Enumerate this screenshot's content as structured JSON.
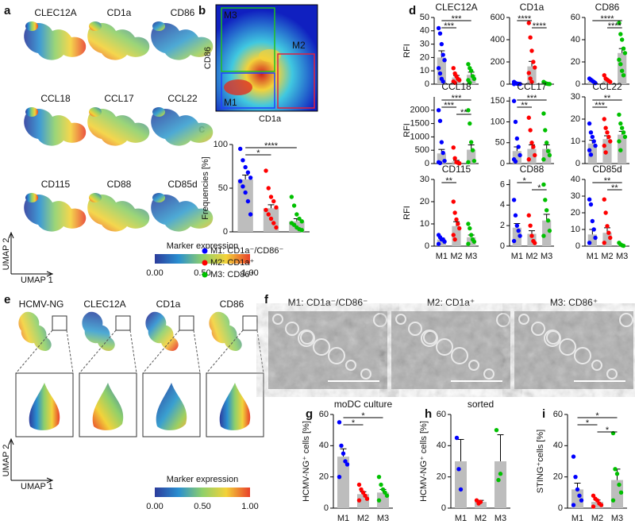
{
  "panel_labels": [
    "a",
    "b",
    "c",
    "d",
    "e",
    "f",
    "g",
    "h",
    "i"
  ],
  "umap_a": {
    "markers": [
      "CLEC12A",
      "CD1a",
      "CD86",
      "CCL18",
      "CCL17",
      "CCL22",
      "CD115",
      "CD88",
      "CD85d"
    ],
    "x_axis": "UMAP 1",
    "y_axis": "UMAP 2",
    "scale_title": "Marker expression",
    "scale_ticks": [
      "0.00",
      "0.50",
      "1.00"
    ]
  },
  "umap_e": {
    "markers": [
      "HCMV-NG",
      "CLEC12A",
      "CD1a",
      "CD86"
    ],
    "x_axis": "UMAP 1",
    "y_axis": "UMAP 2",
    "scale_title": "Marker expression",
    "scale_ticks": [
      "0.00",
      "0.50",
      "1.00"
    ]
  },
  "gating_b": {
    "y_axis": "CD86",
    "x_axis": "CD1a",
    "gates": [
      "M3",
      "M2",
      "M1"
    ]
  },
  "micrographs_f": {
    "titles": [
      "M1: CD1a⁻/CD86⁻",
      "M2: CD1a⁺",
      "M3: CD86⁺"
    ]
  },
  "chart_data": [
    {
      "type": "bar",
      "ylabel": "Frequencies [%]",
      "ylim": [
        0,
        100
      ],
      "yticks": [
        0,
        50,
        100
      ],
      "values": [
        60,
        27,
        12
      ],
      "errors": [
        5,
        4,
        3
      ],
      "colors": [
        "#0000ff",
        "#ff0000",
        "#00c000"
      ],
      "bar_color": "#bdbdbd",
      "points": [
        [
          95,
          82,
          74,
          68,
          62,
          58,
          52,
          45,
          35,
          20
        ],
        [
          70,
          50,
          40,
          35,
          28,
          25,
          20,
          15,
          10,
          5
        ],
        [
          40,
          30,
          20,
          15,
          12,
          10,
          8,
          5,
          3,
          2
        ]
      ],
      "significance": [
        {
          "label": "****",
          "pair": [
            0,
            2
          ]
        },
        {
          "label": "*",
          "pair": [
            0,
            1
          ]
        }
      ],
      "legend": [
        "M1: CD1a⁻/CD86⁻",
        "M2: CD1a⁺",
        "M3: CD86⁺"
      ]
    },
    {
      "type": "bar",
      "title": "CLEC12A",
      "ylabel": "RFI",
      "ylim": [
        0,
        50
      ],
      "yticks": [
        0,
        10,
        20,
        30,
        40,
        50
      ],
      "values": [
        20,
        5,
        7
      ],
      "errors": [
        5,
        1.5,
        2
      ],
      "colors": [
        "#0000ff",
        "#ff0000",
        "#00c000"
      ],
      "bar_color": "#bdbdbd",
      "points": [
        [
          42,
          38,
          30,
          22,
          18,
          12,
          8,
          4,
          2
        ],
        [
          12,
          8,
          6,
          4,
          3,
          2,
          1
        ],
        [
          15,
          12,
          10,
          6,
          4,
          3,
          1
        ]
      ],
      "significance": [
        {
          "label": "***",
          "pair": [
            0,
            2
          ]
        },
        {
          "label": "***",
          "pair": [
            0,
            1
          ]
        }
      ]
    },
    {
      "type": "bar",
      "title": "CD1a",
      "ylim": [
        0,
        600
      ],
      "yticks": [
        0,
        200,
        400,
        600
      ],
      "values": [
        5,
        160,
        5
      ],
      "errors": [
        2,
        45,
        2
      ],
      "colors": [
        "#0000ff",
        "#ff0000",
        "#00c000"
      ],
      "bar_color": "#bdbdbd",
      "points": [
        [
          20,
          10,
          5,
          3,
          2,
          1
        ],
        [
          550,
          420,
          300,
          200,
          150,
          100,
          50,
          20
        ],
        [
          20,
          10,
          5,
          2,
          1
        ]
      ],
      "significance": [
        {
          "label": "****",
          "pair": [
            0,
            1
          ]
        },
        {
          "label": "****",
          "pair": [
            1,
            2
          ]
        }
      ]
    },
    {
      "type": "bar",
      "title": "CD86",
      "ylim": [
        0,
        60
      ],
      "yticks": [
        0,
        20,
        40,
        60
      ],
      "values": [
        2,
        3,
        28
      ],
      "errors": [
        0.5,
        0.8,
        4
      ],
      "colors": [
        "#0000ff",
        "#ff0000",
        "#00c000"
      ],
      "bar_color": "#bdbdbd",
      "points": [
        [
          5,
          4,
          3,
          2,
          1
        ],
        [
          8,
          5,
          4,
          3,
          2
        ],
        [
          55,
          45,
          40,
          32,
          28,
          22,
          18,
          12,
          8
        ]
      ],
      "significance": [
        {
          "label": "****",
          "pair": [
            0,
            2
          ]
        },
        {
          "label": "****",
          "pair": [
            1,
            2
          ]
        }
      ]
    },
    {
      "type": "bar",
      "title": "CCL18",
      "ylabel": "RFI",
      "ylim": [
        0,
        2500
      ],
      "yticks": [
        0,
        500,
        1000,
        1500,
        2000
      ],
      "values": [
        380,
        80,
        520
      ],
      "errors": [
        150,
        40,
        180
      ],
      "colors": [
        "#0000ff",
        "#ff0000",
        "#00c000"
      ],
      "bar_color": "#bdbdbd",
      "points": [
        [
          2000,
          1600,
          800,
          400,
          100,
          50,
          20
        ],
        [
          600,
          200,
          50,
          30,
          10
        ],
        [
          2000,
          1500,
          800,
          500,
          100,
          50
        ]
      ],
      "significance": [
        {
          "label": "***",
          "pair": [
            0,
            2
          ]
        },
        {
          "label": "***",
          "pair": [
            0,
            1
          ]
        },
        {
          "label": "**",
          "pair": [
            1,
            2
          ]
        }
      ]
    },
    {
      "type": "bar",
      "title": "CCL17",
      "ylim": [
        0,
        160
      ],
      "yticks": [
        0,
        50,
        100,
        150
      ],
      "values": [
        30,
        35,
        35
      ],
      "errors": [
        10,
        10,
        10
      ],
      "colors": [
        "#0000ff",
        "#ff0000",
        "#00c000"
      ],
      "bar_color": "#bdbdbd",
      "points": [
        [
          150,
          100,
          60,
          40,
          20,
          10,
          5
        ],
        [
          110,
          80,
          50,
          40,
          20,
          10
        ],
        [
          120,
          80,
          50,
          30,
          20,
          10
        ]
      ],
      "significance": [
        {
          "label": "***",
          "pair": [
            0,
            2
          ]
        },
        {
          "label": "**",
          "pair": [
            0,
            1
          ]
        }
      ]
    },
    {
      "type": "bar",
      "title": "CCL22",
      "ylim": [
        0,
        30
      ],
      "yticks": [
        0,
        10,
        20,
        30
      ],
      "values": [
        9,
        11,
        13
      ],
      "errors": [
        1.5,
        1.5,
        1.5
      ],
      "colors": [
        "#0000ff",
        "#ff0000",
        "#00c000"
      ],
      "bar_color": "#bdbdbd",
      "points": [
        [
          18,
          14,
          12,
          10,
          8,
          6,
          4
        ],
        [
          20,
          16,
          14,
          12,
          10,
          8,
          5
        ],
        [
          22,
          18,
          16,
          14,
          12,
          10,
          6
        ]
      ],
      "significance": [
        {
          "label": "**",
          "pair": [
            0,
            2
          ]
        },
        {
          "label": "***",
          "pair": [
            0,
            1
          ]
        }
      ]
    },
    {
      "type": "bar",
      "title": "CD115",
      "ylabel": "RFI",
      "ylim": [
        0,
        30
      ],
      "yticks": [
        0,
        10,
        20,
        30
      ],
      "categories": [
        "M1",
        "M2",
        "M3"
      ],
      "values": [
        3,
        9,
        4
      ],
      "errors": [
        0.6,
        2,
        1
      ],
      "colors": [
        "#0000ff",
        "#ff0000",
        "#00c000"
      ],
      "bar_color": "#bdbdbd",
      "points": [
        [
          5,
          4,
          3,
          3,
          2,
          1
        ],
        [
          20,
          15,
          12,
          10,
          8,
          5,
          3
        ],
        [
          10,
          8,
          5,
          3,
          2,
          1
        ]
      ],
      "significance": [
        {
          "label": "**",
          "pair": [
            0,
            1
          ]
        }
      ]
    },
    {
      "type": "bar",
      "title": "CD88",
      "ylim": [
        0,
        6.5
      ],
      "yticks": [
        0,
        2,
        4,
        6
      ],
      "categories": [
        "M1",
        "M2",
        "M3"
      ],
      "values": [
        1.8,
        1.2,
        2.5
      ],
      "errors": [
        0.4,
        0.3,
        0.6
      ],
      "colors": [
        "#0000ff",
        "#ff0000",
        "#00c000"
      ],
      "bar_color": "#bdbdbd",
      "points": [
        [
          4.5,
          3,
          2,
          1.5,
          1,
          0.5
        ],
        [
          3,
          2,
          1,
          0.5,
          0.3
        ],
        [
          6,
          4.5,
          3.5,
          2.5,
          1.5,
          1
        ]
      ],
      "significance": [
        {
          "label": "*",
          "pair": [
            0,
            1
          ]
        },
        {
          "label": "*",
          "pair": [
            1,
            2
          ]
        }
      ]
    },
    {
      "type": "bar",
      "title": "CD85d",
      "ylim": [
        0,
        40
      ],
      "yticks": [
        0,
        10,
        20,
        30,
        40
      ],
      "categories": [
        "M1",
        "M2",
        "M3"
      ],
      "values": [
        7,
        8,
        0.5
      ],
      "errors": [
        3,
        3,
        0.3
      ],
      "colors": [
        "#0000ff",
        "#ff0000",
        "#00c000"
      ],
      "bar_color": "#bdbdbd",
      "points": [
        [
          28,
          25,
          15,
          10,
          5,
          2
        ],
        [
          28,
          20,
          12,
          8,
          5,
          2
        ],
        [
          2,
          1,
          0.5,
          0.2
        ]
      ],
      "significance": [
        {
          "label": "**",
          "pair": [
            0,
            2
          ]
        },
        {
          "label": "**",
          "pair": [
            1,
            2
          ]
        }
      ]
    },
    {
      "type": "bar",
      "title": "moDC culture",
      "ylabel": "HCMV-NG⁺ cells [%]",
      "ylim": [
        0,
        60
      ],
      "yticks": [
        0,
        20,
        40,
        60
      ],
      "categories": [
        "M1",
        "M2",
        "M3"
      ],
      "values": [
        33,
        9,
        10
      ],
      "errors": [
        5,
        1.5,
        2
      ],
      "colors": [
        "#0000ff",
        "#ff0000",
        "#00c000"
      ],
      "bar_color": "#bdbdbd",
      "points": [
        [
          55,
          40,
          35,
          30,
          28,
          20
        ],
        [
          15,
          12,
          10,
          8,
          6,
          5
        ],
        [
          20,
          15,
          12,
          10,
          8,
          5
        ]
      ],
      "significance": [
        {
          "label": "*",
          "pair": [
            0,
            2
          ]
        },
        {
          "label": "*",
          "pair": [
            0,
            1
          ]
        }
      ]
    },
    {
      "type": "bar",
      "title": "sorted",
      "ylabel": "HCMV-NG⁺ cells [%]",
      "ylim": [
        0,
        60
      ],
      "yticks": [
        0,
        20,
        40,
        60
      ],
      "categories": [
        "M1",
        "M2",
        "M3"
      ],
      "values": [
        30,
        4,
        30
      ],
      "errors": [
        14,
        1,
        17
      ],
      "colors": [
        "#0000ff",
        "#ff0000",
        "#00c000"
      ],
      "bar_color": "#bdbdbd",
      "points": [
        [
          45,
          25,
          12
        ],
        [
          5,
          3,
          4
        ],
        [
          50,
          18,
          22
        ]
      ]
    },
    {
      "type": "bar",
      "ylabel": "STING⁺cells [%]",
      "ylim": [
        0,
        60
      ],
      "yticks": [
        0,
        20,
        40,
        60
      ],
      "categories": [
        "M1",
        "M2",
        "M3"
      ],
      "values": [
        12,
        4,
        18
      ],
      "errors": [
        4,
        1.2,
        7
      ],
      "colors": [
        "#0000ff",
        "#ff0000",
        "#00c000"
      ],
      "bar_color": "#bdbdbd",
      "points": [
        [
          33,
          20,
          12,
          8,
          5,
          2
        ],
        [
          8,
          6,
          5,
          3,
          2,
          1
        ],
        [
          48,
          25,
          22,
          15,
          10,
          5
        ]
      ],
      "significance": [
        {
          "label": "*",
          "pair": [
            0,
            2
          ]
        },
        {
          "label": "*",
          "pair": [
            0,
            1
          ]
        },
        {
          "label": "*",
          "pair": [
            1,
            2
          ]
        }
      ]
    }
  ]
}
